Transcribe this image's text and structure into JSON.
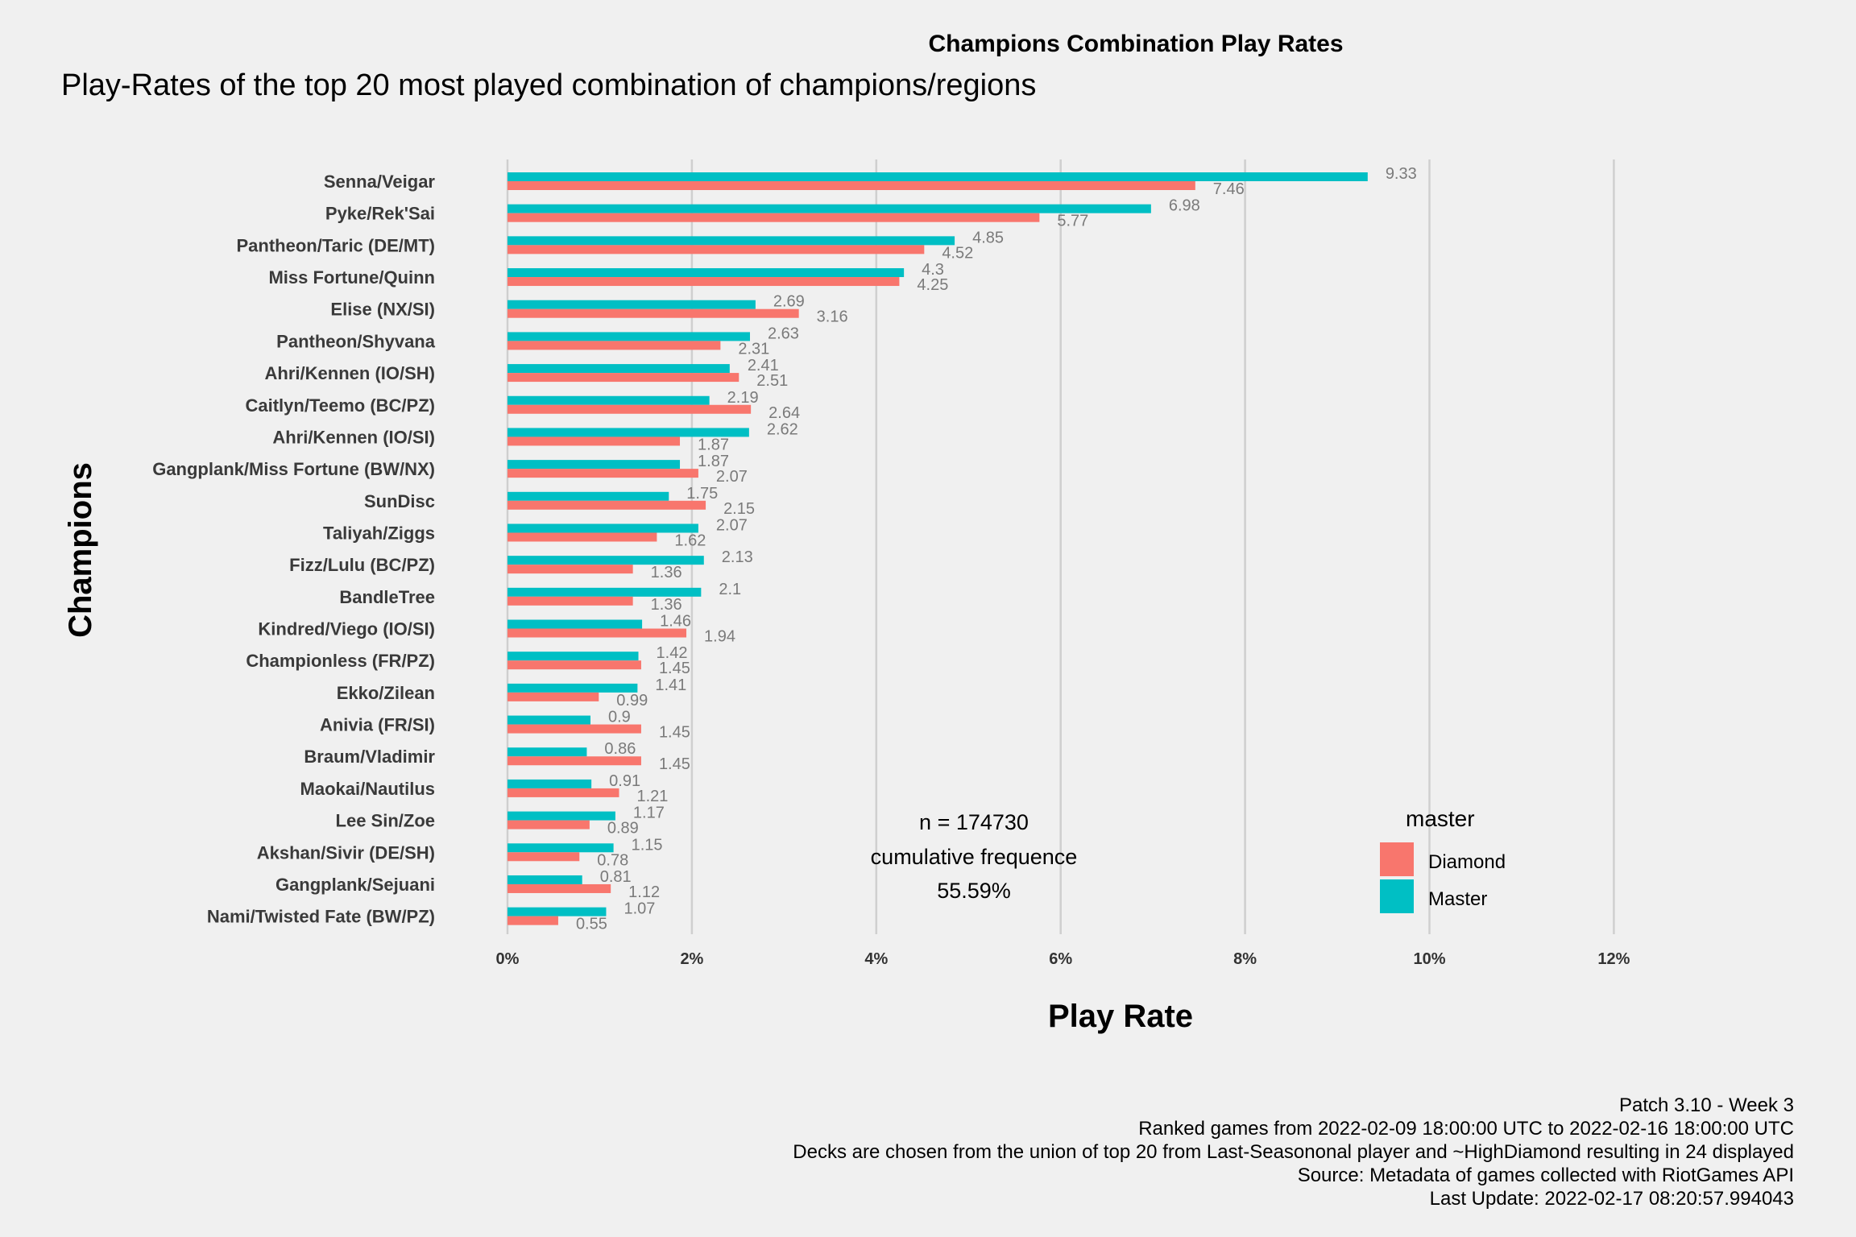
{
  "chart_data": {
    "type": "bar",
    "orientation": "horizontal",
    "title": "Champions Combination Play Rates",
    "subtitle": "Play-Rates of the top 20 most played combination of champions/regions",
    "xlabel": "Play Rate",
    "ylabel": "Champions",
    "xlim": [
      0,
      12
    ],
    "x_ticks": [
      "0%",
      "2%",
      "4%",
      "6%",
      "8%",
      "10%",
      "12%"
    ],
    "grid": "vertical major gridlines",
    "legend": {
      "title": "master",
      "position": "bottom-right"
    },
    "categories": [
      "Senna/Veigar",
      "Pyke/Rek'Sai",
      "Pantheon/Taric (DE/MT)",
      "Miss Fortune/Quinn",
      "Elise (NX/SI)",
      "Pantheon/Shyvana",
      "Ahri/Kennen (IO/SH)",
      "Caitlyn/Teemo (BC/PZ)",
      "Ahri/Kennen (IO/SI)",
      "Gangplank/Miss Fortune (BW/NX)",
      "SunDisc",
      "Taliyah/Ziggs",
      "Fizz/Lulu (BC/PZ)",
      "BandleTree",
      "Kindred/Viego (IO/SI)",
      "Championless (FR/PZ)",
      "Ekko/Zilean",
      "Anivia (FR/SI)",
      "Braum/Vladimir",
      "Maokai/Nautilus",
      "Lee Sin/Zoe",
      "Akshan/Sivir (DE/SH)",
      "Gangplank/Sejuani",
      "Nami/Twisted Fate (BW/PZ)"
    ],
    "series": [
      {
        "name": "Diamond",
        "color": "#F8766D",
        "values": [
          7.46,
          5.77,
          4.52,
          4.25,
          3.16,
          2.31,
          2.51,
          2.64,
          1.87,
          2.07,
          2.15,
          1.62,
          1.36,
          1.36,
          1.94,
          1.45,
          0.99,
          1.45,
          1.45,
          1.21,
          0.89,
          0.78,
          1.12,
          0.55
        ]
      },
      {
        "name": "Master",
        "color": "#00BFC4",
        "values": [
          9.33,
          6.98,
          4.85,
          4.3,
          2.69,
          2.63,
          2.41,
          2.19,
          2.62,
          1.87,
          1.75,
          2.07,
          2.13,
          2.1,
          1.46,
          1.42,
          1.41,
          0.9,
          0.86,
          0.91,
          1.17,
          1.15,
          0.81,
          1.07
        ]
      }
    ],
    "annotation": [
      "n = 174730",
      "cumulative frequence",
      "55.59%"
    ],
    "caption": [
      "Patch 3.10 - Week 3",
      "Ranked games from 2022-02-09 18:00:00 UTC to 2022-02-16 18:00:00 UTC",
      "Decks are chosen from the union of top 20 from Last-Seasononal player and ~HighDiamond resulting in 24 displayed",
      "Source: Metadata of games collected with RiotGames API",
      "Last Update: 2022-02-17 08:20:57.994043"
    ]
  }
}
